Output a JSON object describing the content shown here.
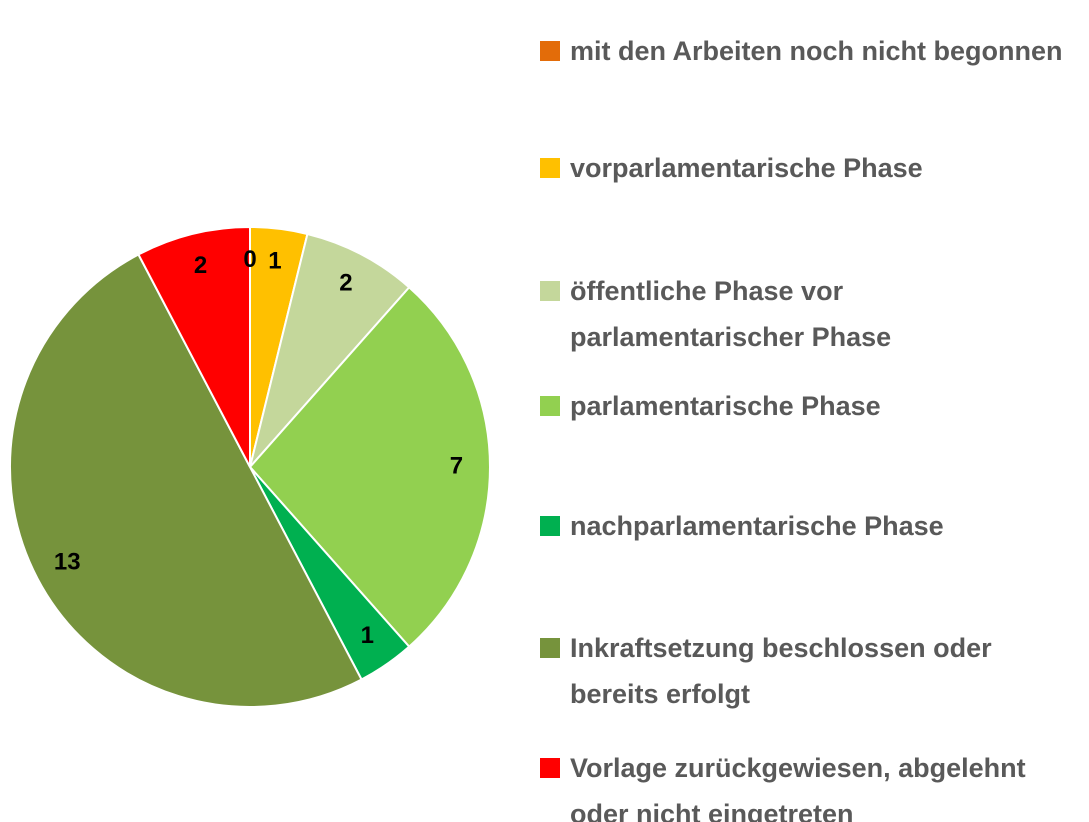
{
  "chart_data": {
    "type": "pie",
    "categories": [
      "mit den Arbeiten noch nicht begonnen",
      "vorparlamentarische Phase",
      "öffentliche Phase vor parlamentarischer Phase",
      "parlamentarische Phase",
      "nachparlamentarische Phase",
      "Inkraftsetzung beschlossen oder bereits erfolgt",
      "Vorlage zurückgewiesen, abgelehnt oder nicht eingetreten"
    ],
    "values": [
      0,
      1,
      2,
      7,
      1,
      13,
      2
    ],
    "colors": [
      "#E36C09",
      "#FFC000",
      "#C4D79B",
      "#92D050",
      "#00B050",
      "#76933C",
      "#FF0000"
    ],
    "legend": "right"
  }
}
